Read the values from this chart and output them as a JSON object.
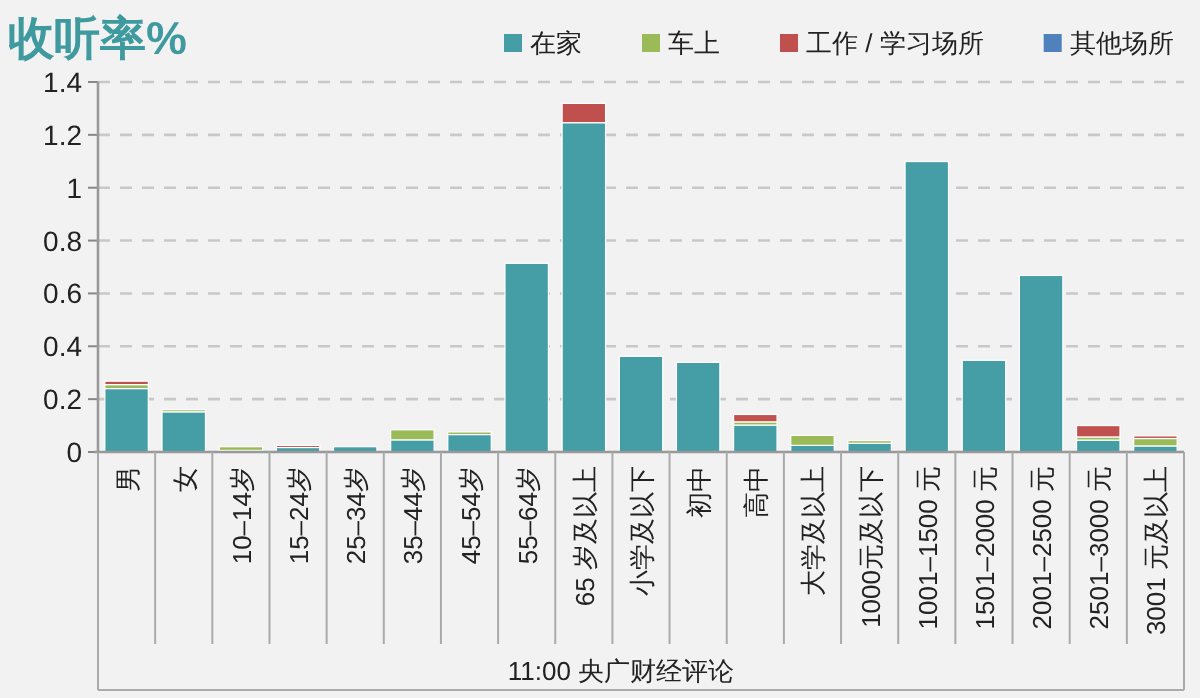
{
  "chart_data": {
    "type": "bar",
    "title": "收听率%",
    "xlabel": "11:00  央广财经评论",
    "stacked": true,
    "legend": "top right",
    "grid": "y",
    "categories": [
      "男",
      "女",
      "10–14岁",
      "15–24岁",
      "25–34岁",
      "35–44岁",
      "45–54岁",
      "55–64岁",
      "65 岁及以上",
      "小学及以下",
      "初中",
      "高中",
      "大学及以上",
      "1000元及以下",
      "1001–1500 元",
      "1501–2000 元",
      "2001–2500 元",
      "2501–3000 元",
      "3001 元及以上"
    ],
    "series": [
      {
        "name": "在家",
        "color": "#459ea6",
        "values": [
          0.24,
          0.152,
          0.006,
          0.017,
          0.02,
          0.046,
          0.066,
          0.714,
          1.246,
          0.362,
          0.339,
          0.102,
          0.025,
          0.033,
          1.099,
          0.347,
          0.668,
          0.045,
          0.023
        ]
      },
      {
        "name": "车上",
        "color": "#9bbb59",
        "values": [
          0.015,
          0.008,
          0.014,
          0,
          null,
          0.038,
          0.01,
          0,
          0,
          0,
          0,
          0.012,
          0.038,
          0.01,
          0,
          0,
          0,
          0.012,
          0.028
        ]
      },
      {
        "name": "工作 / 学习场所",
        "color": "#c0504d",
        "values": [
          0.013,
          0,
          0,
          0.008,
          0,
          0,
          0,
          0,
          0.073,
          0,
          0,
          0.028,
          0,
          0,
          0,
          0,
          0,
          0.043,
          0.01
        ]
      },
      {
        "name": "其他场所",
        "color": "#4f81bd",
        "values": [
          0,
          0,
          0,
          0,
          0,
          0,
          0,
          0,
          0,
          0,
          0,
          0,
          0,
          0,
          0,
          0,
          0,
          0,
          0
        ]
      }
    ],
    "ylim": [
      0,
      1.4
    ],
    "yticks": [
      0,
      0.2,
      0.4,
      0.6,
      0.8,
      1,
      1.2,
      1.4
    ]
  }
}
